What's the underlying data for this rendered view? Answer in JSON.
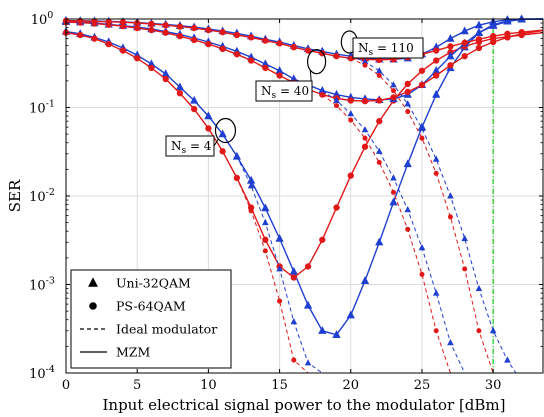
{
  "chart_data": {
    "type": "line",
    "xlabel": "Input electrical signal power to the modulator [dBm]",
    "ylabel": "SER",
    "xlim": [
      0,
      33.5
    ],
    "ylim": [
      0.0001,
      1
    ],
    "y_scale": "log",
    "grid": true,
    "legend_position": "bottom-left",
    "x_ticks": [
      "0",
      "5",
      "10",
      "15",
      "20",
      "25",
      "30"
    ],
    "y_ticks": [
      {
        "base": "10",
        "exp": "0"
      },
      {
        "base": "10",
        "exp": "-1"
      },
      {
        "base": "10",
        "exp": "-2"
      },
      {
        "base": "10",
        "exp": "-3"
      },
      {
        "base": "10",
        "exp": "-4"
      }
    ],
    "legend": [
      {
        "label": "Uni-32QAM",
        "marker": "triangle"
      },
      {
        "label": "PS-64QAM",
        "marker": "circle"
      },
      {
        "label": "Ideal modulator",
        "line": "dashed"
      },
      {
        "label": "MZM",
        "line": "solid"
      }
    ],
    "annotations": [
      {
        "base": "N",
        "sub": "s",
        "text": " = 4",
        "x": 11.2,
        "y": 0.055
      },
      {
        "base": "N",
        "sub": "s",
        "text": " = 40",
        "x": 17.6,
        "y": 0.33
      },
      {
        "base": "N",
        "sub": "s",
        "text": " = 110",
        "x": 20.0,
        "y": 0.55
      }
    ],
    "vertical_line": {
      "x": 30,
      "color": "#22cc22"
    },
    "colors": {
      "uni32": "#1f3fd0",
      "ps64": "#e01818"
    },
    "series": [
      {
        "name": "Uni-32QAM",
        "group": "Ns = 4",
        "style": "MZM",
        "color": "#1f3fd0",
        "marker": "triangle",
        "x": [
          0,
          1,
          2,
          3,
          4,
          5,
          6,
          7,
          8,
          9,
          10,
          11,
          12,
          13,
          14,
          15,
          16,
          17,
          18,
          19,
          20,
          21,
          22,
          23,
          24,
          25,
          26,
          27,
          28,
          29,
          30,
          31,
          32,
          33.5
        ],
        "y": [
          0.72,
          0.68,
          0.62,
          0.55,
          0.47,
          0.39,
          0.31,
          0.24,
          0.17,
          0.12,
          0.08,
          0.05,
          0.028,
          0.015,
          0.0073,
          0.0033,
          0.0014,
          0.00058,
          0.0003,
          0.00027,
          0.00045,
          0.0011,
          0.003,
          0.0085,
          0.023,
          0.06,
          0.14,
          0.28,
          0.48,
          0.7,
          0.86,
          0.95,
          0.99,
          1.0
        ]
      },
      {
        "name": "PS-64QAM",
        "group": "Ns = 4",
        "style": "MZM",
        "color": "#e01818",
        "marker": "circle",
        "x": [
          0,
          1,
          2,
          3,
          4,
          5,
          6,
          7,
          8,
          9,
          10,
          11,
          12,
          13,
          14,
          15,
          16,
          17,
          18,
          19,
          20,
          21,
          22,
          23,
          24,
          25,
          26,
          27,
          28,
          29,
          30,
          31,
          32,
          33.5
        ],
        "y": [
          0.7,
          0.66,
          0.6,
          0.52,
          0.44,
          0.36,
          0.28,
          0.21,
          0.145,
          0.096,
          0.058,
          0.032,
          0.016,
          0.0074,
          0.0032,
          0.0016,
          0.0012,
          0.0016,
          0.0032,
          0.0074,
          0.017,
          0.036,
          0.07,
          0.12,
          0.185,
          0.26,
          0.34,
          0.42,
          0.49,
          0.55,
          0.6,
          0.63,
          0.66,
          0.7
        ]
      },
      {
        "name": "Uni-32QAM",
        "group": "Ns = 4",
        "style": "Ideal modulator",
        "color": "#1f3fd0",
        "marker": "triangle",
        "x": [
          10,
          11,
          12,
          13,
          14,
          15,
          16,
          17,
          18
        ],
        "y": [
          0.08,
          0.05,
          0.028,
          0.013,
          0.005,
          0.0015,
          0.00038,
          0.00013,
          0.0001
        ]
      },
      {
        "name": "PS-64QAM",
        "group": "Ns = 4",
        "style": "Ideal modulator",
        "color": "#e01818",
        "marker": "circle",
        "x": [
          10,
          11,
          12,
          13,
          14,
          15,
          16,
          17
        ],
        "y": [
          0.058,
          0.032,
          0.016,
          0.0068,
          0.0024,
          0.00065,
          0.00014,
          0.0001
        ]
      },
      {
        "name": "Uni-32QAM",
        "group": "Ns = 40",
        "style": "MZM",
        "color": "#1f3fd0",
        "marker": "triangle",
        "x": [
          0,
          1,
          2,
          3,
          4,
          5,
          6,
          7,
          8,
          9,
          10,
          11,
          12,
          13,
          14,
          15,
          16,
          17,
          18,
          19,
          20,
          21,
          22,
          23,
          24,
          25,
          26,
          27,
          28,
          29,
          30,
          31,
          32,
          33.5
        ],
        "y": [
          0.93,
          0.92,
          0.9,
          0.87,
          0.84,
          0.81,
          0.77,
          0.72,
          0.67,
          0.61,
          0.55,
          0.49,
          0.43,
          0.37,
          0.31,
          0.26,
          0.21,
          0.18,
          0.155,
          0.14,
          0.13,
          0.125,
          0.122,
          0.125,
          0.14,
          0.18,
          0.26,
          0.38,
          0.53,
          0.7,
          0.84,
          0.94,
          0.99,
          1.0
        ]
      },
      {
        "name": "PS-64QAM",
        "group": "Ns = 40",
        "style": "MZM",
        "color": "#e01818",
        "marker": "circle",
        "x": [
          0,
          1,
          2,
          3,
          4,
          5,
          6,
          7,
          8,
          9,
          10,
          11,
          12,
          13,
          14,
          15,
          16,
          17,
          18,
          19,
          20,
          21,
          22,
          23,
          24,
          25,
          26,
          27,
          28,
          29,
          30,
          31,
          32,
          33.5
        ],
        "y": [
          0.92,
          0.91,
          0.89,
          0.86,
          0.83,
          0.79,
          0.75,
          0.7,
          0.64,
          0.58,
          0.52,
          0.46,
          0.4,
          0.34,
          0.28,
          0.23,
          0.19,
          0.16,
          0.14,
          0.127,
          0.12,
          0.118,
          0.12,
          0.13,
          0.15,
          0.18,
          0.23,
          0.3,
          0.38,
          0.47,
          0.55,
          0.62,
          0.68,
          0.74
        ]
      },
      {
        "name": "Uni-32QAM",
        "group": "Ns = 40",
        "style": "Ideal modulator",
        "color": "#1f3fd0",
        "marker": "triangle",
        "x": [
          18,
          19,
          20,
          21,
          22,
          23,
          24,
          25,
          26,
          27,
          28
        ],
        "y": [
          0.155,
          0.12,
          0.085,
          0.056,
          0.032,
          0.016,
          0.007,
          0.0026,
          0.0008,
          0.00022,
          0.0001
        ]
      },
      {
        "name": "PS-64QAM",
        "group": "Ns = 40",
        "style": "Ideal modulator",
        "color": "#e01818",
        "marker": "circle",
        "x": [
          18,
          19,
          20,
          21,
          22,
          23,
          24,
          25,
          26,
          27
        ],
        "y": [
          0.14,
          0.105,
          0.072,
          0.045,
          0.024,
          0.011,
          0.0042,
          0.0013,
          0.0003,
          0.0001
        ]
      },
      {
        "name": "Uni-32QAM",
        "group": "Ns = 110",
        "style": "MZM",
        "color": "#1f3fd0",
        "marker": "triangle",
        "x": [
          0,
          1,
          2,
          3,
          4,
          5,
          6,
          7,
          8,
          9,
          10,
          11,
          12,
          13,
          14,
          15,
          16,
          17,
          18,
          19,
          20,
          21,
          22,
          23,
          24,
          25,
          26,
          27,
          28,
          29,
          30,
          31,
          32,
          33.5
        ],
        "y": [
          0.96,
          0.955,
          0.95,
          0.94,
          0.93,
          0.91,
          0.89,
          0.87,
          0.84,
          0.81,
          0.77,
          0.73,
          0.69,
          0.64,
          0.59,
          0.55,
          0.5,
          0.46,
          0.43,
          0.4,
          0.38,
          0.36,
          0.35,
          0.35,
          0.36,
          0.4,
          0.48,
          0.6,
          0.73,
          0.85,
          0.93,
          0.98,
          1.0,
          1.0
        ]
      },
      {
        "name": "PS-64QAM",
        "group": "Ns = 110",
        "style": "MZM",
        "color": "#e01818",
        "marker": "circle",
        "x": [
          0,
          1,
          2,
          3,
          4,
          5,
          6,
          7,
          8,
          9,
          10,
          11,
          12,
          13,
          14,
          15,
          16,
          17,
          18,
          19,
          20,
          21,
          22,
          23,
          24,
          25,
          26,
          27,
          28,
          29,
          30,
          31,
          32,
          33.5
        ],
        "y": [
          0.955,
          0.95,
          0.94,
          0.93,
          0.92,
          0.9,
          0.88,
          0.85,
          0.82,
          0.79,
          0.75,
          0.71,
          0.66,
          0.62,
          0.57,
          0.53,
          0.48,
          0.44,
          0.41,
          0.38,
          0.36,
          0.35,
          0.345,
          0.35,
          0.37,
          0.4,
          0.44,
          0.49,
          0.54,
          0.59,
          0.64,
          0.68,
          0.71,
          0.75
        ]
      },
      {
        "name": "Uni-32QAM",
        "group": "Ns = 110",
        "style": "Ideal modulator",
        "color": "#1f3fd0",
        "marker": "triangle",
        "x": [
          20,
          21,
          22,
          23,
          24,
          25,
          26,
          27,
          28,
          29,
          30,
          31,
          31.6
        ],
        "y": [
          0.38,
          0.33,
          0.26,
          0.18,
          0.11,
          0.058,
          0.026,
          0.01,
          0.0033,
          0.0009,
          0.0003,
          0.00014,
          0.0001
        ]
      },
      {
        "name": "PS-64QAM",
        "group": "Ns = 110",
        "style": "Ideal modulator",
        "color": "#e01818",
        "marker": "circle",
        "x": [
          20,
          21,
          22,
          23,
          24,
          25,
          26,
          27,
          28,
          29,
          30
        ],
        "y": [
          0.36,
          0.3,
          0.23,
          0.155,
          0.09,
          0.045,
          0.018,
          0.0058,
          0.0015,
          0.0003,
          0.0001
        ]
      }
    ]
  }
}
